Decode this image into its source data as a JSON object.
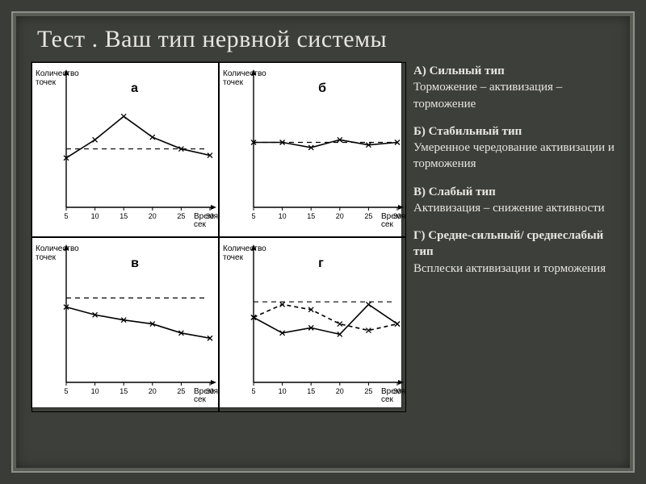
{
  "title": "Тест . Ваш тип нервной системы",
  "axis": {
    "y_label": "Количество\nточек",
    "x_label": "Время\nсек",
    "x_ticks": [
      5,
      10,
      15,
      20,
      25,
      30
    ],
    "tick_fontsize": 9,
    "axis_label_fontsize": 10
  },
  "colors": {
    "background": "#3d3f3a",
    "frame": "#8f8f88",
    "text": "#e8e6e0",
    "chart_bg": "#ffffff",
    "line": "#000000",
    "dashed": "#000000"
  },
  "charts": [
    {
      "label": "а",
      "baseline_y": 0.55,
      "series": [
        {
          "style": "solid",
          "marker": "x",
          "points": [
            [
              5,
              0.62
            ],
            [
              10,
              0.48
            ],
            [
              15,
              0.3
            ],
            [
              20,
              0.46
            ],
            [
              25,
              0.55
            ],
            [
              30,
              0.6
            ]
          ]
        }
      ]
    },
    {
      "label": "б",
      "baseline_y": 0.5,
      "series": [
        {
          "style": "solid",
          "marker": "x",
          "points": [
            [
              5,
              0.5
            ],
            [
              10,
              0.5
            ],
            [
              15,
              0.54
            ],
            [
              20,
              0.48
            ],
            [
              25,
              0.52
            ],
            [
              30,
              0.5
            ]
          ]
        }
      ]
    },
    {
      "label": "в",
      "baseline_y": 0.35,
      "series": [
        {
          "style": "solid",
          "marker": "x",
          "points": [
            [
              5,
              0.42
            ],
            [
              10,
              0.48
            ],
            [
              15,
              0.52
            ],
            [
              20,
              0.55
            ],
            [
              25,
              0.62
            ],
            [
              30,
              0.66
            ]
          ]
        }
      ]
    },
    {
      "label": "г",
      "baseline_y": 0.38,
      "series": [
        {
          "style": "solid",
          "marker": "x",
          "points": [
            [
              5,
              0.5
            ],
            [
              10,
              0.62
            ],
            [
              15,
              0.58
            ],
            [
              20,
              0.63
            ],
            [
              25,
              0.4
            ],
            [
              30,
              0.55
            ]
          ]
        },
        {
          "style": "dashed",
          "marker": "x",
          "points": [
            [
              5,
              0.5
            ],
            [
              10,
              0.4
            ],
            [
              15,
              0.44
            ],
            [
              20,
              0.55
            ],
            [
              25,
              0.6
            ],
            [
              30,
              0.55
            ]
          ]
        }
      ]
    }
  ],
  "legend": [
    {
      "label": "А) Сильный тип",
      "desc": "Торможение – активизация – торможение"
    },
    {
      "label": "Б) Стабильный тип",
      "desc": "Умеренное чередование активизации и торможения"
    },
    {
      "label": "В) Слабый тип",
      "desc": "Активизация – снижение активности"
    },
    {
      "label": "Г) Средне-сильный/ среднеслабый тип",
      "desc": "Всплески активизации и торможения"
    }
  ]
}
